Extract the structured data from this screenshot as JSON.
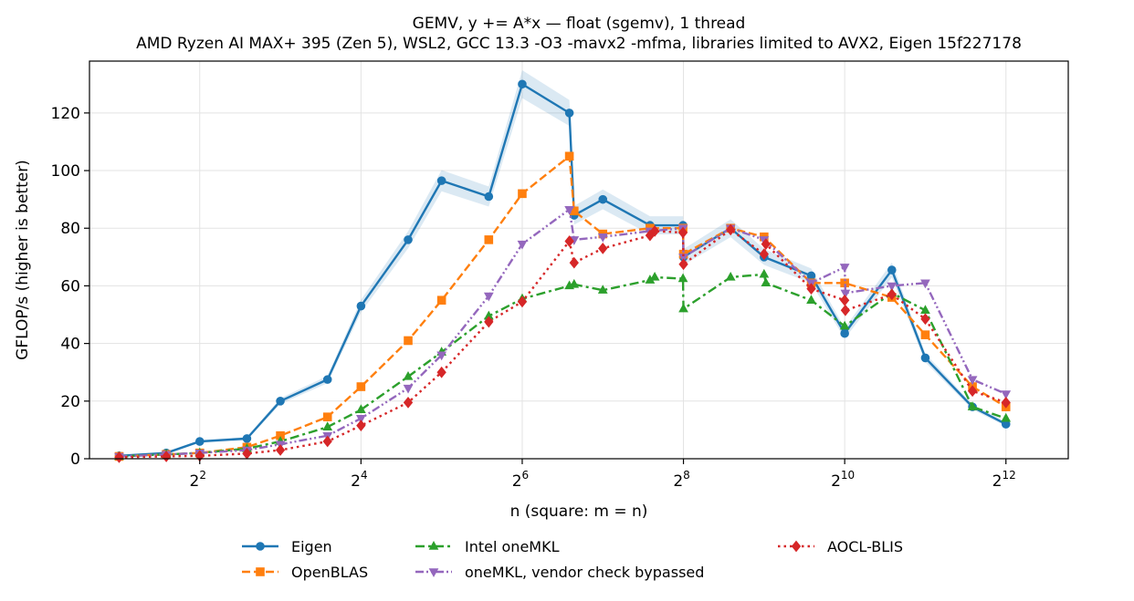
{
  "chart_data": {
    "type": "line",
    "title": "GEMV, y += A*x — float (sgemv), 1 thread",
    "subtitle": "AMD Ryzen AI MAX+ 395 (Zen 5), WSL2, GCC 13.3 -O3 -mavx2 -mfma, libraries limited to AVX2, Eigen 15f227178",
    "xlabel": "n (square: m = n)",
    "ylabel": "GFLOP/s (higher is better)",
    "x_scale": "log2",
    "xlim": [
      1.55,
      7000
    ],
    "ylim": [
      0,
      138
    ],
    "x_ticks": [
      {
        "value": 4,
        "base": "2",
        "exp": "2"
      },
      {
        "value": 16,
        "base": "2",
        "exp": "4"
      },
      {
        "value": 64,
        "base": "2",
        "exp": "6"
      },
      {
        "value": 256,
        "base": "2",
        "exp": "8"
      },
      {
        "value": 1024,
        "base": "2",
        "exp": "10"
      },
      {
        "value": 4096,
        "base": "2",
        "exp": "12"
      }
    ],
    "y_ticks": [
      0,
      20,
      40,
      60,
      80,
      100,
      120
    ],
    "grid": true,
    "legend_position": "bottom",
    "series": [
      {
        "name": "Eigen",
        "color": "#1f77b4",
        "dash": "solid",
        "marker": "circle",
        "x": [
          2,
          3,
          4,
          6,
          8,
          12,
          16,
          24,
          32,
          48,
          64,
          96,
          100,
          128,
          192,
          255,
          256,
          384,
          512,
          768,
          1024,
          1536,
          2048,
          3072,
          4096
        ],
        "y": [
          1.0,
          2.0,
          6.0,
          7.0,
          20.0,
          27.5,
          53.0,
          76.0,
          96.5,
          91.0,
          130.0,
          120.0,
          84.5,
          90.0,
          81.0,
          81.0,
          70.0,
          80.0,
          70.0,
          63.5,
          43.5,
          65.5,
          35.0,
          18.0,
          12.0
        ]
      },
      {
        "name": "OpenBLAS",
        "color": "#ff7f0e",
        "dash": "dashed",
        "marker": "square",
        "x": [
          2,
          3,
          4,
          6,
          8,
          12,
          16,
          24,
          32,
          48,
          64,
          96,
          100,
          128,
          192,
          255,
          256,
          384,
          512,
          768,
          1024,
          1536,
          2048,
          3072,
          4096
        ],
        "y": [
          0.8,
          1.5,
          2.0,
          4.0,
          8.0,
          14.5,
          25.0,
          41.0,
          55.0,
          76.0,
          92.0,
          105.0,
          86.0,
          78.0,
          80.0,
          80.0,
          71.0,
          80.0,
          77.0,
          61.0,
          61.0,
          56.0,
          43.0,
          25.0,
          18.0
        ]
      },
      {
        "name": "Intel oneMKL",
        "color": "#2ca02c",
        "dash": "dashdot",
        "marker": "triangle",
        "x": [
          2,
          3,
          4,
          6,
          8,
          12,
          16,
          24,
          32,
          48,
          64,
          96,
          100,
          128,
          192,
          200,
          255,
          256,
          384,
          512,
          520,
          768,
          1024,
          1536,
          2048,
          3072,
          4096
        ],
        "y": [
          0.8,
          1.5,
          2.0,
          3.5,
          6.0,
          11.0,
          17.0,
          28.5,
          37.0,
          49.5,
          55.5,
          60.0,
          60.5,
          58.5,
          62.0,
          63.0,
          62.5,
          52.0,
          63.0,
          64.0,
          61.0,
          55.0,
          46.0,
          57.5,
          51.5,
          18.0,
          14.0
        ]
      },
      {
        "name": "oneMKL, vendor check bypassed",
        "color": "#9467bd",
        "dash": "dashdotdot",
        "marker": "triangle-down",
        "x": [
          2,
          3,
          4,
          6,
          8,
          12,
          16,
          24,
          32,
          48,
          64,
          96,
          100,
          128,
          192,
          255,
          256,
          384,
          512,
          768,
          1024,
          1030,
          1536,
          2048,
          3072,
          4096
        ],
        "y": [
          0.8,
          1.5,
          2.0,
          3.0,
          5.0,
          8.0,
          14.0,
          24.5,
          36.0,
          56.5,
          74.5,
          86.5,
          76.0,
          77.0,
          79.0,
          80.0,
          70.0,
          80.0,
          76.0,
          61.0,
          66.5,
          57.5,
          60.0,
          61.0,
          27.5,
          22.5
        ]
      },
      {
        "name": "AOCL-BLIS",
        "color": "#d62728",
        "dash": "dotted",
        "marker": "diamond",
        "x": [
          2,
          3,
          4,
          6,
          8,
          12,
          16,
          24,
          32,
          48,
          64,
          96,
          100,
          128,
          192,
          200,
          255,
          256,
          384,
          512,
          520,
          768,
          1024,
          1030,
          1536,
          2048,
          3072,
          4096
        ],
        "y": [
          0.5,
          0.8,
          1.0,
          1.8,
          3.0,
          6.0,
          11.5,
          19.5,
          30.0,
          47.5,
          54.5,
          75.5,
          68.0,
          73.0,
          77.5,
          79.0,
          78.5,
          67.5,
          79.5,
          71.0,
          74.5,
          59.0,
          55.0,
          51.5,
          57.0,
          48.5,
          23.5,
          19.5
        ]
      }
    ]
  }
}
